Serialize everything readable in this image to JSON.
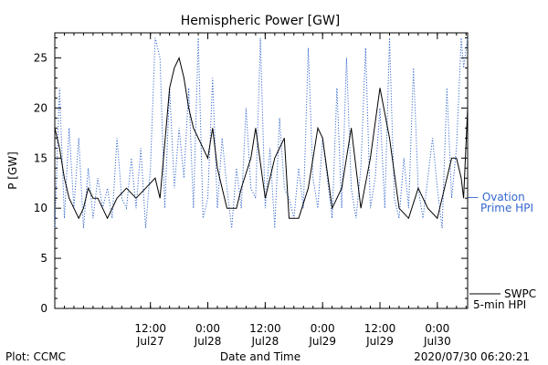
{
  "chart_data": {
    "type": "line",
    "title": "Hemispheric Power [GW]",
    "ylabel": "P [GW]",
    "xlabel": "Date and Time",
    "ylim": [
      0,
      27.5
    ],
    "xlim": [
      "2020-07-26T16:00",
      "2020-07-30T06:20"
    ],
    "yticks": [
      0,
      5,
      10,
      15,
      20,
      25
    ],
    "xticks": [
      {
        "t": "2020-07-27T12:00",
        "time": "12:00",
        "date": "Jul27"
      },
      {
        "t": "2020-07-28T00:00",
        "time": "0:00",
        "date": "Jul28"
      },
      {
        "t": "2020-07-28T12:00",
        "time": "12:00",
        "date": "Jul28"
      },
      {
        "t": "2020-07-29T00:00",
        "time": "0:00",
        "date": "Jul29"
      },
      {
        "t": "2020-07-29T12:00",
        "time": "12:00",
        "date": "Jul29"
      },
      {
        "t": "2020-07-30T00:00",
        "time": "0:00",
        "date": "Jul30"
      }
    ],
    "grid": false,
    "legend_position": "right",
    "series": [
      {
        "name": "SWPC 5-min HPI",
        "color": "#000000",
        "style": "solid",
        "x": [
          "2020-07-26T16:00",
          "2020-07-26T17:00",
          "2020-07-26T18:00",
          "2020-07-26T19:00",
          "2020-07-26T20:00",
          "2020-07-26T21:00",
          "2020-07-26T22:00",
          "2020-07-26T23:00",
          "2020-07-27T00:00",
          "2020-07-27T01:00",
          "2020-07-27T03:00",
          "2020-07-27T05:00",
          "2020-07-27T07:00",
          "2020-07-27T09:00",
          "2020-07-27T11:00",
          "2020-07-27T13:00",
          "2020-07-27T14:00",
          "2020-07-27T16:00",
          "2020-07-27T17:00",
          "2020-07-27T18:00",
          "2020-07-27T19:00",
          "2020-07-27T20:00",
          "2020-07-27T21:00",
          "2020-07-27T22:00",
          "2020-07-28T00:00",
          "2020-07-28T01:00",
          "2020-07-28T02:00",
          "2020-07-28T03:00",
          "2020-07-28T04:00",
          "2020-07-28T06:00",
          "2020-07-28T07:00",
          "2020-07-28T09:00",
          "2020-07-28T10:00",
          "2020-07-28T12:00",
          "2020-07-28T14:00",
          "2020-07-28T16:00",
          "2020-07-28T17:00",
          "2020-07-28T19:00",
          "2020-07-28T21:00",
          "2020-07-28T23:00",
          "2020-07-29T00:00",
          "2020-07-29T02:00",
          "2020-07-29T04:00",
          "2020-07-29T06:00",
          "2020-07-29T08:00",
          "2020-07-29T10:00",
          "2020-07-29T12:00",
          "2020-07-29T14:00",
          "2020-07-29T16:00",
          "2020-07-29T18:00",
          "2020-07-29T20:00",
          "2020-07-29T22:00",
          "2020-07-30T00:00",
          "2020-07-30T02:00",
          "2020-07-30T03:00",
          "2020-07-30T04:00",
          "2020-07-30T05:00",
          "2020-07-30T05:30",
          "2020-07-30T06:20"
        ],
        "y": [
          18,
          16,
          13,
          11,
          10,
          9,
          10,
          12,
          11,
          11,
          9,
          11,
          12,
          11,
          12,
          13,
          11,
          22,
          24,
          25,
          23,
          20,
          18,
          17,
          15,
          18,
          14,
          12,
          10,
          10,
          12,
          15,
          18,
          11,
          15,
          17,
          9,
          9,
          12,
          18,
          17,
          10,
          12,
          18,
          10,
          15,
          22,
          17,
          10,
          9,
          12,
          10,
          9,
          13,
          15,
          15,
          13,
          11,
          20
        ]
      },
      {
        "name": "Ovation Prime HPI",
        "color": "#3366cc",
        "style": "dotted",
        "x": [
          "2020-07-26T16:00",
          "2020-07-26T17:00",
          "2020-07-26T18:00",
          "2020-07-26T19:00",
          "2020-07-26T20:00",
          "2020-07-26T21:00",
          "2020-07-26T22:00",
          "2020-07-26T23:00",
          "2020-07-27T00:00",
          "2020-07-27T01:00",
          "2020-07-27T02:00",
          "2020-07-27T03:00",
          "2020-07-27T04:00",
          "2020-07-27T05:00",
          "2020-07-27T06:00",
          "2020-07-27T07:00",
          "2020-07-27T08:00",
          "2020-07-27T09:00",
          "2020-07-27T10:00",
          "2020-07-27T11:00",
          "2020-07-27T12:00",
          "2020-07-27T13:00",
          "2020-07-27T14:00",
          "2020-07-27T15:00",
          "2020-07-27T16:00",
          "2020-07-27T17:00",
          "2020-07-27T18:00",
          "2020-07-27T19:00",
          "2020-07-27T20:00",
          "2020-07-27T21:00",
          "2020-07-27T22:00",
          "2020-07-27T23:00",
          "2020-07-28T00:00",
          "2020-07-28T01:00",
          "2020-07-28T02:00",
          "2020-07-28T03:00",
          "2020-07-28T04:00",
          "2020-07-28T05:00",
          "2020-07-28T06:00",
          "2020-07-28T07:00",
          "2020-07-28T08:00",
          "2020-07-28T09:00",
          "2020-07-28T10:00",
          "2020-07-28T11:00",
          "2020-07-28T12:00",
          "2020-07-28T13:00",
          "2020-07-28T14:00",
          "2020-07-28T15:00",
          "2020-07-28T16:00",
          "2020-07-28T17:00",
          "2020-07-28T18:00",
          "2020-07-28T19:00",
          "2020-07-28T20:00",
          "2020-07-28T21:00",
          "2020-07-28T22:00",
          "2020-07-28T23:00",
          "2020-07-29T00:00",
          "2020-07-29T01:00",
          "2020-07-29T02:00",
          "2020-07-29T03:00",
          "2020-07-29T04:00",
          "2020-07-29T05:00",
          "2020-07-29T06:00",
          "2020-07-29T07:00",
          "2020-07-29T08:00",
          "2020-07-29T09:00",
          "2020-07-29T10:00",
          "2020-07-29T11:00",
          "2020-07-29T12:00",
          "2020-07-29T13:00",
          "2020-07-29T14:00",
          "2020-07-29T15:00",
          "2020-07-29T16:00",
          "2020-07-29T17:00",
          "2020-07-29T18:00",
          "2020-07-29T19:00",
          "2020-07-29T20:00",
          "2020-07-29T21:00",
          "2020-07-29T22:00",
          "2020-07-29T23:00",
          "2020-07-30T00:00",
          "2020-07-30T01:00",
          "2020-07-30T02:00",
          "2020-07-30T03:00",
          "2020-07-30T04:00",
          "2020-07-30T05:00",
          "2020-07-30T05:30",
          "2020-07-30T06:20"
        ],
        "y": [
          8,
          22,
          9,
          18,
          10,
          17,
          8,
          14,
          9,
          13,
          10,
          12,
          9,
          17,
          11,
          10,
          15,
          10,
          16,
          8,
          14,
          27,
          25,
          10,
          22,
          12,
          18,
          13,
          22,
          10,
          27,
          9,
          11,
          23,
          10,
          17,
          12,
          8,
          14,
          10,
          20,
          12,
          11,
          27,
          10,
          16,
          8,
          19,
          12,
          11,
          9,
          14,
          10,
          26,
          13,
          10,
          17,
          13,
          9,
          22,
          10,
          25,
          12,
          9,
          14,
          26,
          10,
          13,
          20,
          10,
          27,
          11,
          9,
          15,
          10,
          24,
          12,
          9,
          13,
          17,
          12,
          8,
          22,
          11,
          16,
          27,
          24,
          27
        ]
      }
    ]
  },
  "footer": {
    "plot_credit": "Plot: CCMC",
    "timestamp": "2020/07/30 06:20:21"
  },
  "legend": {
    "ovation_line1": "— Ovation",
    "ovation_line2": "Prime HPI",
    "swpc_line1": "SWPC",
    "swpc_line2": "5-min HPI"
  }
}
